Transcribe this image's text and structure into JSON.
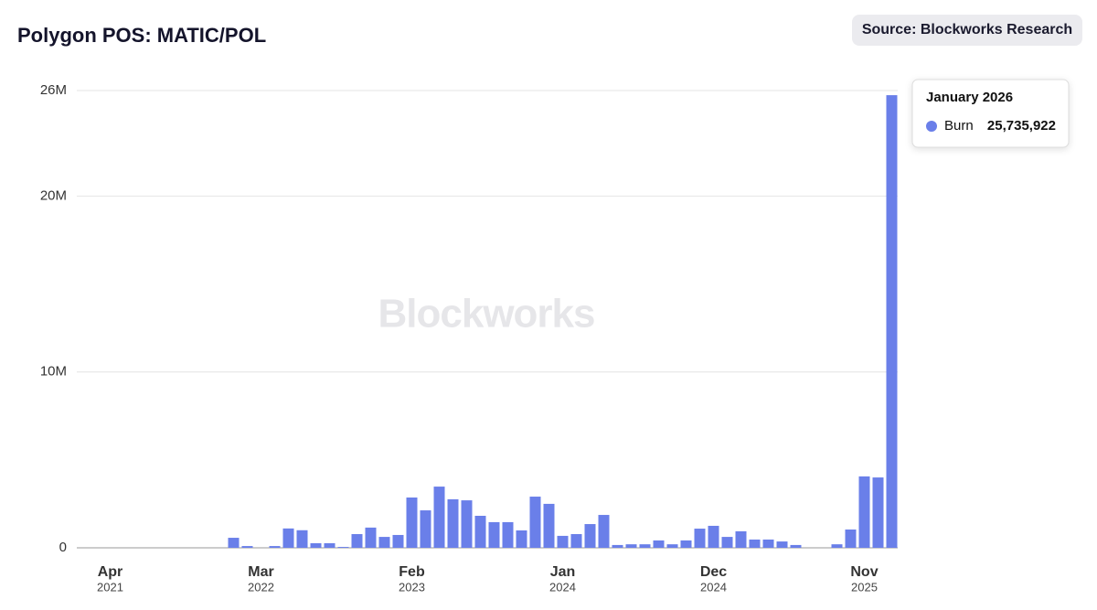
{
  "chart_data": {
    "type": "bar",
    "title": "Polygon POS: MATIC/POL",
    "source": "Source: Blockworks Research",
    "watermark": "Blockworks",
    "categories": [
      [
        "Apr",
        "2021"
      ],
      null,
      null,
      null,
      null,
      null,
      null,
      null,
      null,
      null,
      null,
      [
        "Mar",
        "2022"
      ],
      null,
      null,
      null,
      null,
      null,
      null,
      null,
      null,
      null,
      null,
      [
        "Feb",
        "2023"
      ],
      null,
      null,
      null,
      null,
      null,
      null,
      null,
      null,
      null,
      null,
      [
        "Jan",
        "2024"
      ],
      null,
      null,
      null,
      null,
      null,
      null,
      null,
      null,
      null,
      null,
      [
        "Dec",
        "2024"
      ],
      null,
      null,
      null,
      null,
      null,
      null,
      null,
      null,
      null,
      null,
      [
        "Nov",
        "2025"
      ],
      null,
      null
    ],
    "series": [
      {
        "name": "Burn",
        "color": "#6a7fe9",
        "values": [
          0,
          0,
          0,
          0,
          0,
          0,
          0,
          0,
          0,
          570000,
          100000,
          0,
          100000,
          1100000,
          1000000,
          260000,
          260000,
          50000,
          780000,
          1150000,
          620000,
          730000,
          2860000,
          2130000,
          3480000,
          2760000,
          2700000,
          1820000,
          1460000,
          1460000,
          990000,
          2910000,
          2500000,
          680000,
          780000,
          1350000,
          1870000,
          160000,
          200000,
          200000,
          420000,
          200000,
          420000,
          1090000,
          1250000,
          620000,
          940000,
          470000,
          470000,
          360000,
          160000,
          0,
          0,
          200000,
          1040000,
          4060000,
          4000000,
          25735922
        ]
      }
    ],
    "ylim": [
      0,
      26000000
    ],
    "yticks": [
      {
        "value": 0,
        "label": "0"
      },
      {
        "value": 10000000,
        "label": "10M"
      },
      {
        "value": 20000000,
        "label": "20M"
      },
      {
        "value": 26000000,
        "label": "26M"
      }
    ],
    "grid": true,
    "tooltip": {
      "title": "January 2026",
      "value_label": "25,735,922"
    }
  }
}
